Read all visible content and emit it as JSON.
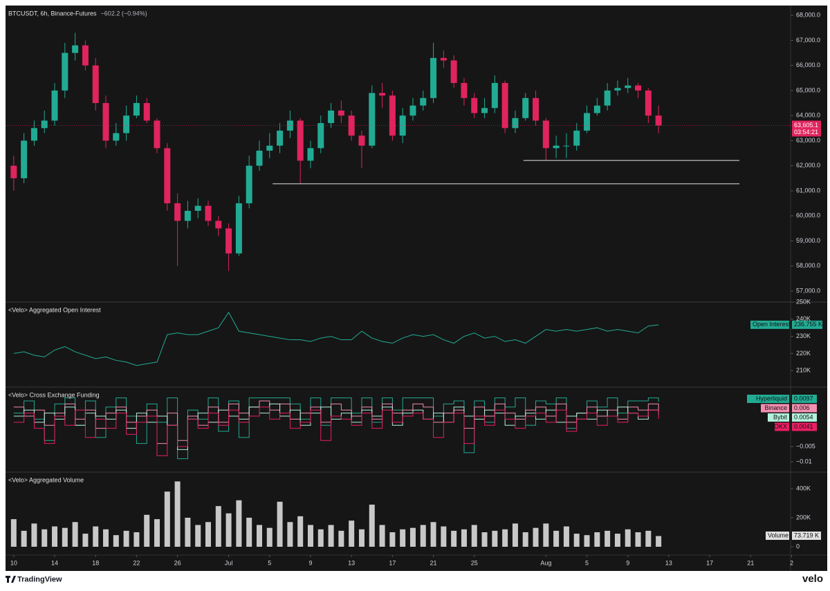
{
  "chart_data": [
    {
      "type": "candlestick",
      "title": "BTCUSDT, 6h, Binance-Futures",
      "subtitle": "−602.2 (−0.94%)",
      "x": [
        0,
        1,
        2,
        3,
        4,
        5,
        6,
        7,
        8,
        9,
        10,
        11,
        12,
        13,
        14,
        15,
        16,
        17,
        18,
        19,
        20,
        21,
        22,
        23,
        24,
        25,
        26,
        27,
        28,
        29,
        30,
        31,
        32,
        33,
        34,
        35,
        36,
        37,
        38,
        39,
        40,
        41,
        42,
        43,
        44,
        45,
        46,
        47,
        48,
        49,
        50,
        51,
        52,
        53,
        54,
        55,
        56,
        57,
        58,
        59,
        60,
        61,
        62,
        63
      ],
      "open": [
        62000,
        61500,
        63000,
        63500,
        63800,
        65000,
        66500,
        66800,
        66000,
        64500,
        63000,
        63300,
        64000,
        64500,
        63800,
        62700,
        60500,
        59800,
        60200,
        60400,
        59800,
        59500,
        58500,
        60500,
        62000,
        62600,
        62800,
        63400,
        63800,
        62200,
        62700,
        63700,
        64200,
        64000,
        63200,
        62800,
        64900,
        64800,
        63200,
        64000,
        64400,
        64700,
        66300,
        66200,
        65300,
        64700,
        64100,
        64300,
        65300,
        63500,
        63900,
        64700,
        63800,
        62700,
        62800,
        62800,
        63400,
        64100,
        64400,
        65000,
        65100,
        65200,
        65000,
        64000
      ],
      "high": [
        62400,
        63300,
        63800,
        64200,
        65300,
        66900,
        67300,
        67000,
        66300,
        64800,
        63700,
        64400,
        64800,
        64700,
        63900,
        62900,
        60900,
        60600,
        60700,
        60600,
        60000,
        59700,
        60800,
        62400,
        63000,
        63300,
        63700,
        64200,
        63900,
        63000,
        64000,
        64500,
        64600,
        64200,
        63400,
        65200,
        65300,
        65000,
        64300,
        64700,
        65000,
        66900,
        66600,
        66400,
        65500,
        64900,
        64700,
        65600,
        65400,
        64200,
        64900,
        65000,
        63900,
        63200,
        63300,
        63700,
        64400,
        64700,
        65300,
        65400,
        65500,
        65300,
        65100,
        64400
      ],
      "low": [
        61000,
        61300,
        62800,
        63300,
        63600,
        64700,
        66200,
        65800,
        64200,
        62700,
        62800,
        63000,
        63900,
        63700,
        62500,
        60200,
        58000,
        59500,
        59900,
        59600,
        59200,
        57800,
        58400,
        60300,
        61800,
        62300,
        62500,
        63100,
        61300,
        61900,
        62500,
        63500,
        63700,
        63000,
        61900,
        62700,
        64300,
        63000,
        62900,
        63800,
        64200,
        64500,
        65900,
        65100,
        64400,
        63900,
        63900,
        64100,
        63300,
        63300,
        63800,
        63600,
        62200,
        62300,
        62300,
        62600,
        63300,
        64000,
        64200,
        64800,
        64900,
        64700,
        63700,
        63300
      ],
      "close": [
        61500,
        63000,
        63500,
        63800,
        65000,
        66500,
        66800,
        66000,
        64500,
        63000,
        63300,
        64000,
        64500,
        63800,
        62700,
        60500,
        59800,
        60200,
        60400,
        59800,
        59500,
        58500,
        60500,
        62000,
        62600,
        62800,
        63400,
        63800,
        62200,
        62700,
        63700,
        64200,
        64000,
        63200,
        62800,
        64900,
        64800,
        63200,
        64000,
        64400,
        64700,
        66300,
        66200,
        65300,
        64700,
        64100,
        64300,
        65300,
        63500,
        63900,
        64700,
        63800,
        62700,
        62800,
        62800,
        63400,
        64100,
        64400,
        65000,
        65100,
        65200,
        65000,
        64000,
        63605.1
      ],
      "last_price_label": "63,605.1",
      "countdown": "03:54:21",
      "up_color": "#22ab94",
      "down_color": "#e0245e",
      "levels": [
        {
          "value": 61280,
          "from": 25.3,
          "to": 70.9
        },
        {
          "value": 62210,
          "from": 49.8,
          "to": 70.9
        }
      ],
      "xlim": [
        -0.8,
        75.9
      ],
      "ylim": [
        56560,
        68390
      ],
      "yticks": [
        {
          "value": 57000,
          "label": "57,000.0"
        },
        {
          "value": 58000,
          "label": "58,000.0"
        },
        {
          "value": 59000,
          "label": "59,000.0"
        },
        {
          "value": 60000,
          "label": "60,000.0"
        },
        {
          "value": 61000,
          "label": "61,000.0"
        },
        {
          "value": 62000,
          "label": "62,000.0"
        },
        {
          "value": 63000,
          "label": "63,000.0"
        },
        {
          "value": 64000,
          "label": "64,000.0"
        },
        {
          "value": 65000,
          "label": "65,000.0"
        },
        {
          "value": 66000,
          "label": "66,000.0"
        },
        {
          "value": 67000,
          "label": "67,000.0"
        },
        {
          "value": 68000,
          "label": "68,000.0"
        }
      ]
    },
    {
      "type": "line",
      "title": "<Velo> Aggregated Open Interest",
      "name": "Open Interest",
      "color": "#22ab94",
      "x": [
        0,
        1,
        2,
        3,
        4,
        5,
        6,
        7,
        8,
        9,
        10,
        11,
        12,
        13,
        14,
        15,
        16,
        17,
        18,
        19,
        20,
        21,
        22,
        23,
        24,
        25,
        26,
        27,
        28,
        29,
        30,
        31,
        32,
        33,
        34,
        35,
        36,
        37,
        38,
        39,
        40,
        41,
        42,
        43,
        44,
        45,
        46,
        47,
        48,
        49,
        50,
        51,
        52,
        53,
        54,
        55,
        56,
        57,
        58,
        59,
        60,
        61,
        62,
        63
      ],
      "values": [
        220000,
        221000,
        219000,
        218000,
        222000,
        224000,
        221000,
        219000,
        217000,
        218000,
        216000,
        215000,
        213000,
        214000,
        215000,
        231000,
        232000,
        231000,
        231000,
        233000,
        235000,
        244000,
        233000,
        232000,
        231000,
        230000,
        229000,
        228000,
        228000,
        227000,
        229000,
        230000,
        228000,
        228000,
        233000,
        229000,
        227000,
        226000,
        229000,
        231000,
        230000,
        231000,
        228000,
        226000,
        230000,
        232000,
        229000,
        230000,
        227000,
        228000,
        226000,
        230000,
        234000,
        233000,
        234000,
        233000,
        234000,
        235000,
        233000,
        234000,
        233000,
        232000,
        236000,
        236755
      ],
      "last_label": "236.755 K",
      "xlim": [
        -0.8,
        75.9
      ],
      "ylim": [
        200400,
        250000
      ],
      "yticks": [
        {
          "value": 210000,
          "label": "210K"
        },
        {
          "value": 220000,
          "label": "220K"
        },
        {
          "value": 230000,
          "label": "230K"
        },
        {
          "value": 240000,
          "label": "240K"
        },
        {
          "value": 250000,
          "label": "250K"
        }
      ]
    },
    {
      "type": "line",
      "step": true,
      "title": "<Velo> Cross Exchange Funding",
      "x": [
        0,
        1,
        2,
        3,
        4,
        5,
        6,
        7,
        8,
        9,
        10,
        11,
        12,
        13,
        14,
        15,
        16,
        17,
        18,
        19,
        20,
        21,
        22,
        23,
        24,
        25,
        26,
        27,
        28,
        29,
        30,
        31,
        32,
        33,
        34,
        35,
        36,
        37,
        38,
        39,
        40,
        41,
        42,
        43,
        44,
        45,
        46,
        47,
        48,
        49,
        50,
        51,
        52,
        53,
        54,
        55,
        56,
        57,
        58,
        59,
        60,
        61,
        62,
        63
      ],
      "series": [
        {
          "name": "Hyperliquid",
          "color": "#22ab94",
          "values": [
            0.006,
            0.01,
            0.004,
            -0.003,
            0.009,
            0.011,
            0.002,
            0.01,
            -0.002,
            0.008,
            0.011,
            0.005,
            -0.004,
            0.009,
            0.003,
            0.011,
            -0.009,
            0.007,
            0.004,
            0.011,
            0.0,
            0.01,
            -0.002,
            0.011,
            0.011,
            0.011,
            0.011,
            0.009,
            0.004,
            0.011,
            0.002,
            0.011,
            0.011,
            0.006,
            0.011,
            0.003,
            0.011,
            0.007,
            0.011,
            0.011,
            0.011,
            0.005,
            0.009,
            0.01,
            -0.007,
            0.01,
            0.003,
            0.011,
            0.008,
            0.011,
            0.002,
            0.01,
            0.009,
            0.011,
            0.001,
            0.004,
            0.01,
            0.008,
            0.011,
            0.006,
            0.01,
            0.01,
            0.011,
            0.0097
          ]
        },
        {
          "name": "Binance",
          "color": "#f48fb1",
          "values": [
            0.008,
            0.005,
            0.007,
            0.002,
            0.006,
            0.009,
            0.004,
            0.007,
            0.001,
            0.006,
            0.008,
            0.003,
            0.005,
            0.007,
            -0.004,
            0.006,
            -0.003,
            0.005,
            0.002,
            0.008,
            0.003,
            0.009,
            0.006,
            0.008,
            0.01,
            0.007,
            0.009,
            0.004,
            0.006,
            0.008,
            0.003,
            0.009,
            0.007,
            0.005,
            0.008,
            0.004,
            0.009,
            0.006,
            0.007,
            0.009,
            0.008,
            0.003,
            0.006,
            0.007,
            0.001,
            0.008,
            0.005,
            0.009,
            0.006,
            0.004,
            0.007,
            0.008,
            0.005,
            0.009,
            0.003,
            0.006,
            0.008,
            0.005,
            0.007,
            0.004,
            0.008,
            0.007,
            0.009,
            0.006
          ]
        },
        {
          "name": "Bybit",
          "color": "#b2f0dc",
          "values": [
            0.005,
            0.007,
            0.003,
            0.006,
            0.004,
            0.008,
            0.002,
            0.006,
            0.005,
            0.004,
            0.007,
            0.001,
            0.006,
            0.003,
            0.005,
            0.002,
            -0.006,
            0.004,
            0.006,
            0.003,
            0.007,
            0.005,
            0.004,
            0.008,
            0.006,
            0.009,
            0.005,
            0.007,
            0.002,
            0.006,
            0.008,
            0.004,
            0.006,
            0.003,
            0.007,
            0.005,
            0.008,
            0.002,
            0.006,
            0.007,
            0.004,
            0.006,
            0.003,
            0.008,
            0.005,
            0.004,
            0.007,
            0.006,
            0.002,
            0.005,
            0.006,
            0.004,
            0.007,
            0.003,
            0.005,
            0.006,
            0.004,
            0.007,
            0.005,
            0.008,
            0.006,
            0.004,
            0.007,
            0.0054
          ]
        },
        {
          "name": "OKX",
          "color": "#e91e63",
          "values": [
            0.003,
            0.006,
            0.001,
            -0.004,
            0.005,
            0.002,
            0.007,
            -0.002,
            0.004,
            0.001,
            0.006,
            -0.001,
            0.003,
            0.005,
            -0.008,
            0.002,
            -0.005,
            0.004,
            0.001,
            0.006,
            0.002,
            0.007,
            0.003,
            0.005,
            0.008,
            0.004,
            0.006,
            0.001,
            0.003,
            0.007,
            -0.003,
            0.005,
            0.004,
            0.002,
            0.006,
            0.001,
            0.007,
            0.003,
            0.005,
            0.006,
            0.004,
            -0.002,
            0.003,
            0.006,
            -0.004,
            0.005,
            0.002,
            0.007,
            0.004,
            0.001,
            0.005,
            0.006,
            0.003,
            0.007,
            0.0,
            0.004,
            0.006,
            0.002,
            0.005,
            0.003,
            0.006,
            0.005,
            0.007,
            0.0041
          ]
        }
      ],
      "xlim": [
        -0.8,
        75.9
      ],
      "ylim": [
        -0.0134,
        0.01455
      ],
      "yticks": [
        {
          "value": -0.005,
          "label": "−0.005"
        },
        {
          "value": -0.01,
          "label": "−0.01"
        }
      ]
    },
    {
      "type": "bar",
      "title": "<Velo> Aggregated Volume",
      "name": "Volume",
      "color": "#c8c8c8",
      "x": [
        0,
        1,
        2,
        3,
        4,
        5,
        6,
        7,
        8,
        9,
        10,
        11,
        12,
        13,
        14,
        15,
        16,
        17,
        18,
        19,
        20,
        21,
        22,
        23,
        24,
        25,
        26,
        27,
        28,
        29,
        30,
        31,
        32,
        33,
        34,
        35,
        36,
        37,
        38,
        39,
        40,
        41,
        42,
        43,
        44,
        45,
        46,
        47,
        48,
        49,
        50,
        51,
        52,
        53,
        54,
        55,
        56,
        57,
        58,
        59,
        60,
        61,
        62,
        63
      ],
      "values": [
        190000,
        110000,
        160000,
        120000,
        140000,
        130000,
        170000,
        90000,
        140000,
        120000,
        80000,
        110000,
        100000,
        220000,
        190000,
        380000,
        450000,
        200000,
        150000,
        170000,
        280000,
        230000,
        320000,
        200000,
        150000,
        130000,
        310000,
        170000,
        210000,
        150000,
        120000,
        150000,
        110000,
        180000,
        120000,
        290000,
        150000,
        100000,
        120000,
        130000,
        150000,
        170000,
        140000,
        110000,
        120000,
        150000,
        100000,
        110000,
        120000,
        160000,
        100000,
        130000,
        160000,
        110000,
        140000,
        90000,
        80000,
        100000,
        110000,
        90000,
        120000,
        100000,
        110000,
        73719
      ],
      "last_label": "73.719 K",
      "xlim": [
        -0.8,
        75.9
      ],
      "ylim": [
        -42900,
        514000
      ],
      "yticks": [
        0,
        {
          "value": 200000,
          "label": "200K"
        },
        {
          "value": 400000,
          "label": "400K"
        }
      ],
      "xticks": [
        {
          "value": 0,
          "label": "10"
        },
        {
          "value": 4,
          "label": "14"
        },
        {
          "value": 8,
          "label": "18"
        },
        {
          "value": 12,
          "label": "22"
        },
        {
          "value": 16,
          "label": "26"
        },
        {
          "value": 21,
          "label": "Jul"
        },
        {
          "value": 25,
          "label": "5"
        },
        {
          "value": 29,
          "label": "9"
        },
        {
          "value": 33,
          "label": "13"
        },
        {
          "value": 37,
          "label": "17"
        },
        {
          "value": 41,
          "label": "21"
        },
        {
          "value": 45,
          "label": "25"
        },
        {
          "value": 52,
          "label": "Aug"
        },
        {
          "value": 56,
          "label": "5"
        },
        {
          "value": 60,
          "label": "9"
        },
        {
          "value": 64,
          "label": "13"
        },
        {
          "value": 68,
          "label": "17"
        },
        {
          "value": 72,
          "label": "21"
        },
        {
          "value": 76,
          "label": "2"
        }
      ]
    }
  ],
  "footer": {
    "brand": "TradingView",
    "watermark": "velo"
  }
}
